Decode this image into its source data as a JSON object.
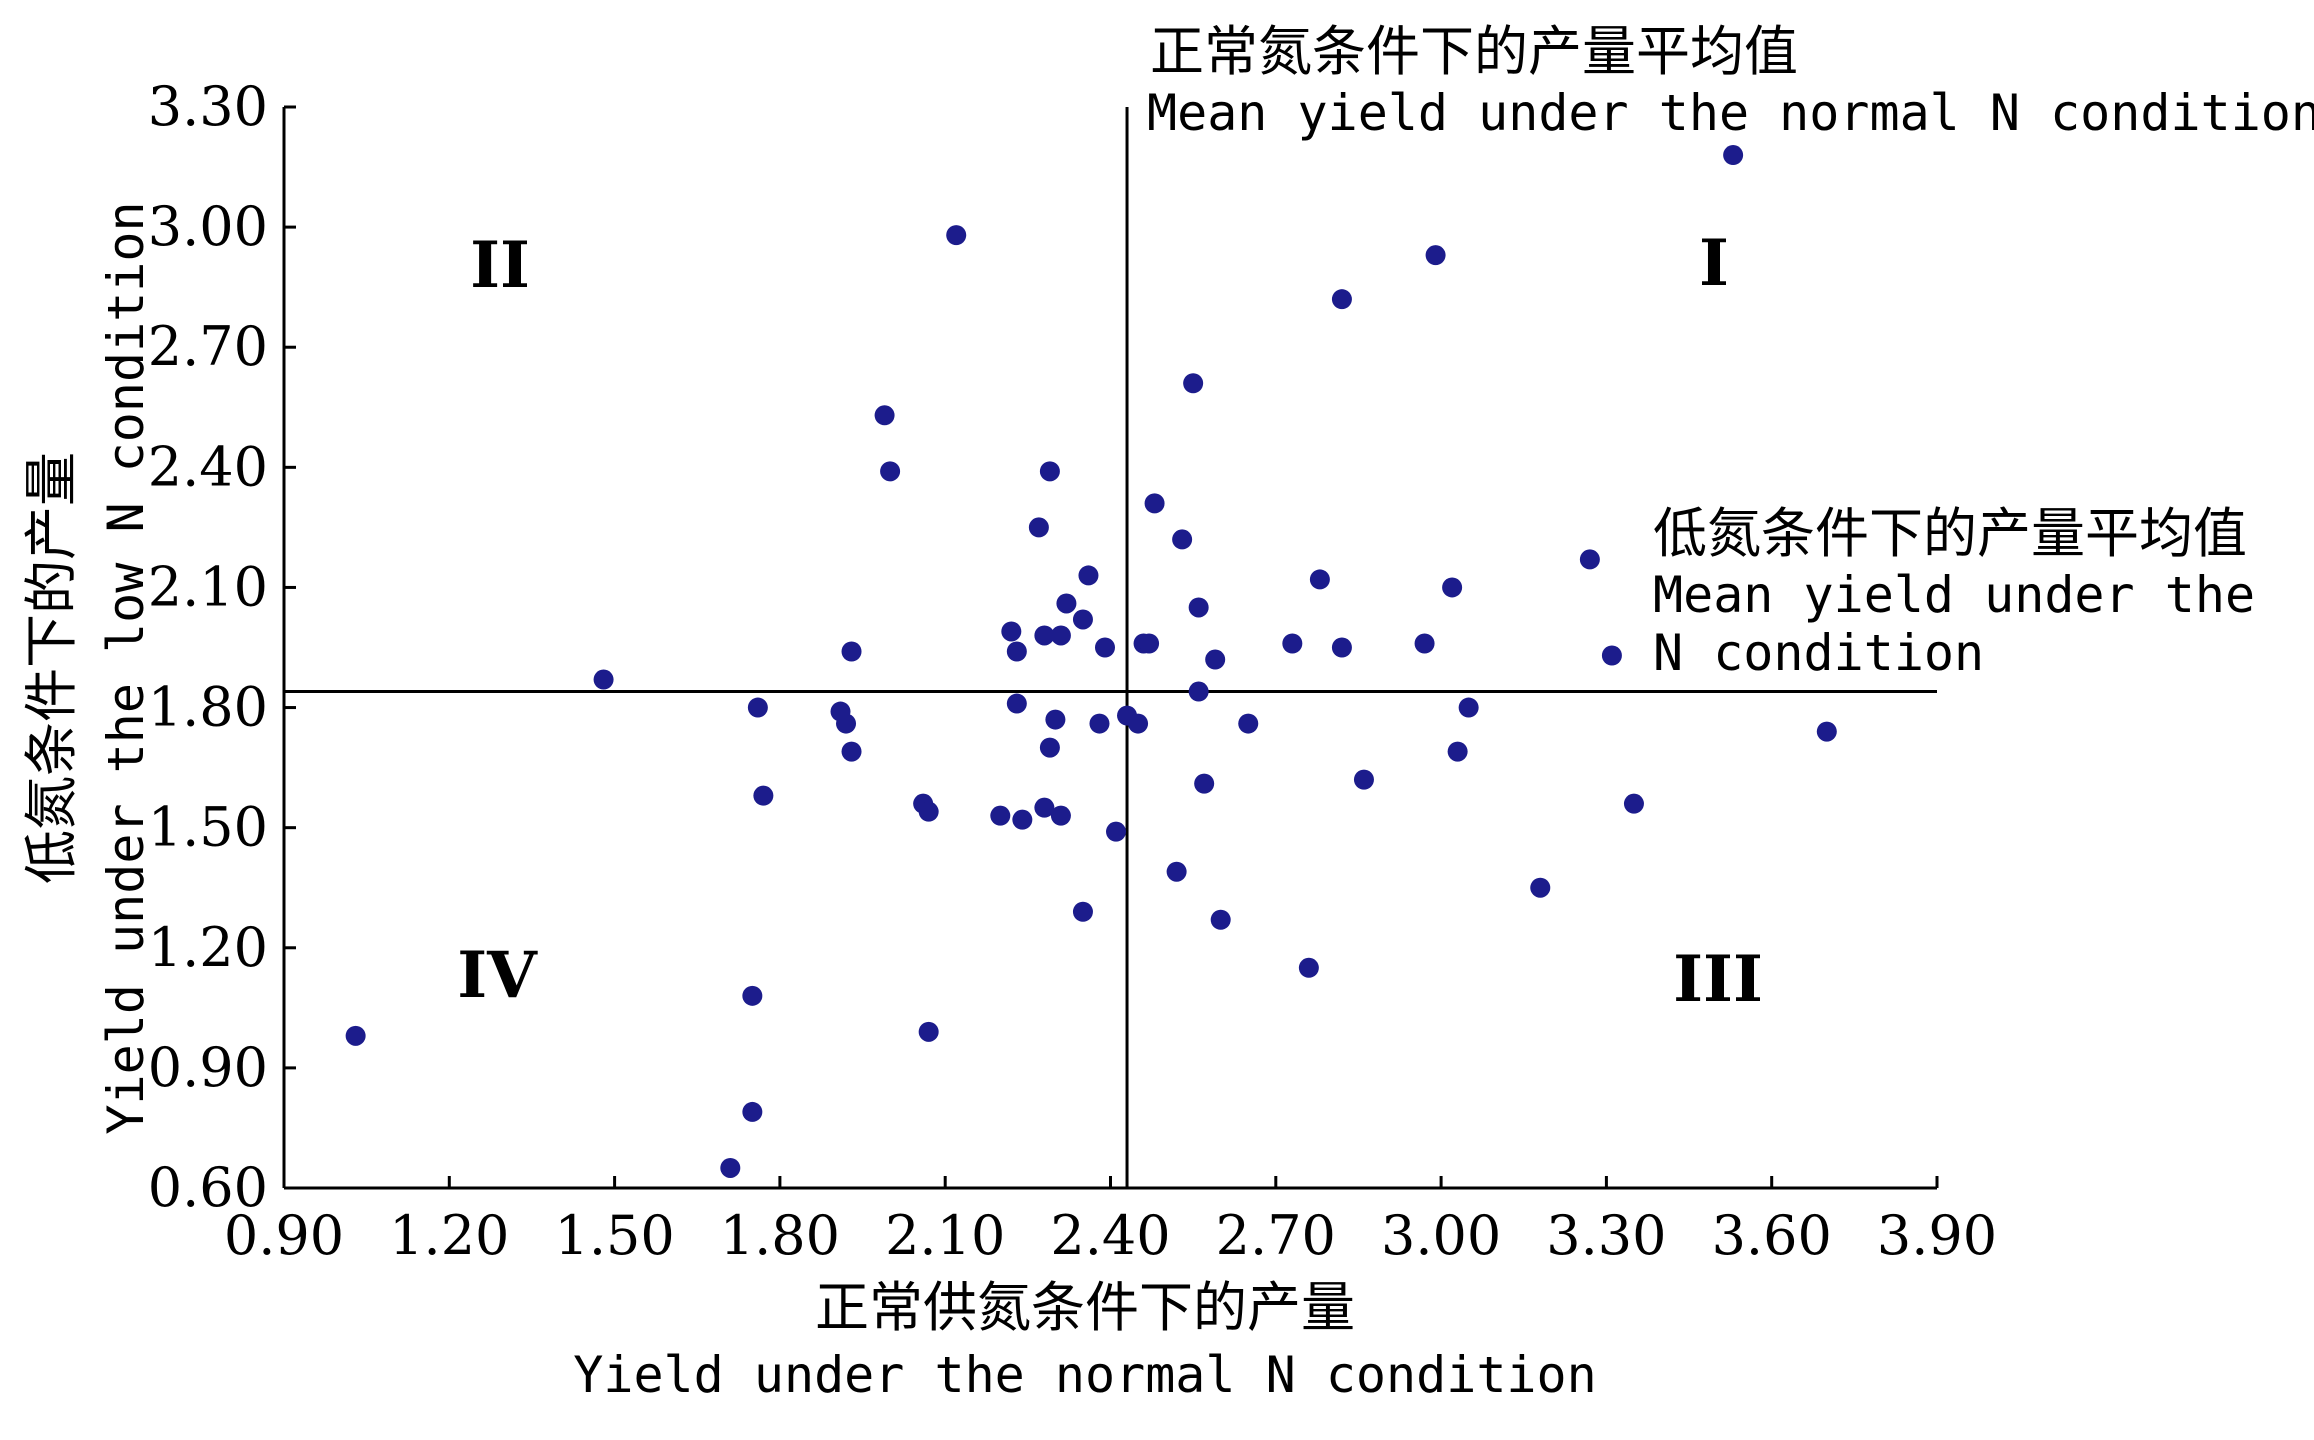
{
  "chart_data": {
    "type": "scatter",
    "xlabel": "正常供氮条件下的产量",
    "xlabel_en": "Yield under the normal N condition",
    "ylabel": "低氮条件下的产量",
    "ylabel_en": "Yield under the low N condition",
    "xlim": [
      0.9,
      3.9
    ],
    "ylim": [
      0.6,
      3.3
    ],
    "x_ticks": [
      "0.90",
      "1.20",
      "1.50",
      "1.80",
      "2.10",
      "2.40",
      "2.70",
      "3.00",
      "3.30",
      "3.60",
      "3.90"
    ],
    "y_ticks": [
      "0.60",
      "0.90",
      "1.20",
      "1.50",
      "1.80",
      "2.10",
      "2.40",
      "2.70",
      "3.00",
      "3.30"
    ],
    "grid": false,
    "point_color": "#1c1c8c",
    "mean_lines": {
      "normal_mean_x": 2.43,
      "low_mean_y": 1.84,
      "normal_label_cn": "正常氮条件下的产量平均值",
      "normal_label_en": "Mean yield under the normal N condition",
      "low_label_cn": "低氮条件下的产量平均值",
      "low_label_en_1": "Mean yield under the",
      "low_label_en_2": "N condition"
    },
    "quadrant_labels": {
      "I": "I",
      "II": "II",
      "III": "III",
      "IV": "IV"
    },
    "points": [
      {
        "x": 1.03,
        "y": 0.98
      },
      {
        "x": 1.48,
        "y": 1.87
      },
      {
        "x": 1.71,
        "y": 0.65
      },
      {
        "x": 1.75,
        "y": 1.08
      },
      {
        "x": 1.75,
        "y": 0.79
      },
      {
        "x": 1.76,
        "y": 1.8
      },
      {
        "x": 1.77,
        "y": 1.58
      },
      {
        "x": 1.91,
        "y": 1.79
      },
      {
        "x": 1.92,
        "y": 1.76
      },
      {
        "x": 1.93,
        "y": 1.94
      },
      {
        "x": 1.93,
        "y": 1.69
      },
      {
        "x": 1.99,
        "y": 2.53
      },
      {
        "x": 2.0,
        "y": 2.39
      },
      {
        "x": 2.06,
        "y": 1.56
      },
      {
        "x": 2.07,
        "y": 1.54
      },
      {
        "x": 2.07,
        "y": 0.99
      },
      {
        "x": 2.12,
        "y": 2.98
      },
      {
        "x": 2.2,
        "y": 1.53
      },
      {
        "x": 2.22,
        "y": 1.99
      },
      {
        "x": 2.23,
        "y": 1.94
      },
      {
        "x": 2.23,
        "y": 1.81
      },
      {
        "x": 2.24,
        "y": 1.52
      },
      {
        "x": 2.27,
        "y": 2.25
      },
      {
        "x": 2.28,
        "y": 1.98
      },
      {
        "x": 2.28,
        "y": 1.55
      },
      {
        "x": 2.29,
        "y": 2.39
      },
      {
        "x": 2.29,
        "y": 1.7
      },
      {
        "x": 2.3,
        "y": 1.77
      },
      {
        "x": 2.31,
        "y": 1.98
      },
      {
        "x": 2.31,
        "y": 1.53
      },
      {
        "x": 2.32,
        "y": 2.06
      },
      {
        "x": 2.35,
        "y": 1.29
      },
      {
        "x": 2.35,
        "y": 2.02
      },
      {
        "x": 2.36,
        "y": 2.13
      },
      {
        "x": 2.38,
        "y": 1.76
      },
      {
        "x": 2.39,
        "y": 1.95
      },
      {
        "x": 2.41,
        "y": 1.49
      },
      {
        "x": 2.43,
        "y": 1.78
      },
      {
        "x": 2.45,
        "y": 1.76
      },
      {
        "x": 2.46,
        "y": 1.96
      },
      {
        "x": 2.47,
        "y": 1.96
      },
      {
        "x": 2.48,
        "y": 2.31
      },
      {
        "x": 2.52,
        "y": 1.39
      },
      {
        "x": 2.53,
        "y": 2.22
      },
      {
        "x": 2.55,
        "y": 2.61
      },
      {
        "x": 2.56,
        "y": 2.05
      },
      {
        "x": 2.56,
        "y": 1.84
      },
      {
        "x": 2.57,
        "y": 1.61
      },
      {
        "x": 2.59,
        "y": 1.92
      },
      {
        "x": 2.6,
        "y": 1.27
      },
      {
        "x": 2.65,
        "y": 1.76
      },
      {
        "x": 2.73,
        "y": 1.96
      },
      {
        "x": 2.76,
        "y": 1.15
      },
      {
        "x": 2.78,
        "y": 2.12
      },
      {
        "x": 2.82,
        "y": 1.95
      },
      {
        "x": 2.82,
        "y": 2.82
      },
      {
        "x": 2.86,
        "y": 1.62
      },
      {
        "x": 2.97,
        "y": 1.96
      },
      {
        "x": 2.99,
        "y": 2.93
      },
      {
        "x": 3.02,
        "y": 2.1
      },
      {
        "x": 3.03,
        "y": 1.69
      },
      {
        "x": 3.05,
        "y": 1.8
      },
      {
        "x": 3.18,
        "y": 1.35
      },
      {
        "x": 3.27,
        "y": 2.17
      },
      {
        "x": 3.31,
        "y": 1.93
      },
      {
        "x": 3.35,
        "y": 1.56
      },
      {
        "x": 3.53,
        "y": 3.18
      },
      {
        "x": 3.7,
        "y": 1.74
      }
    ]
  }
}
